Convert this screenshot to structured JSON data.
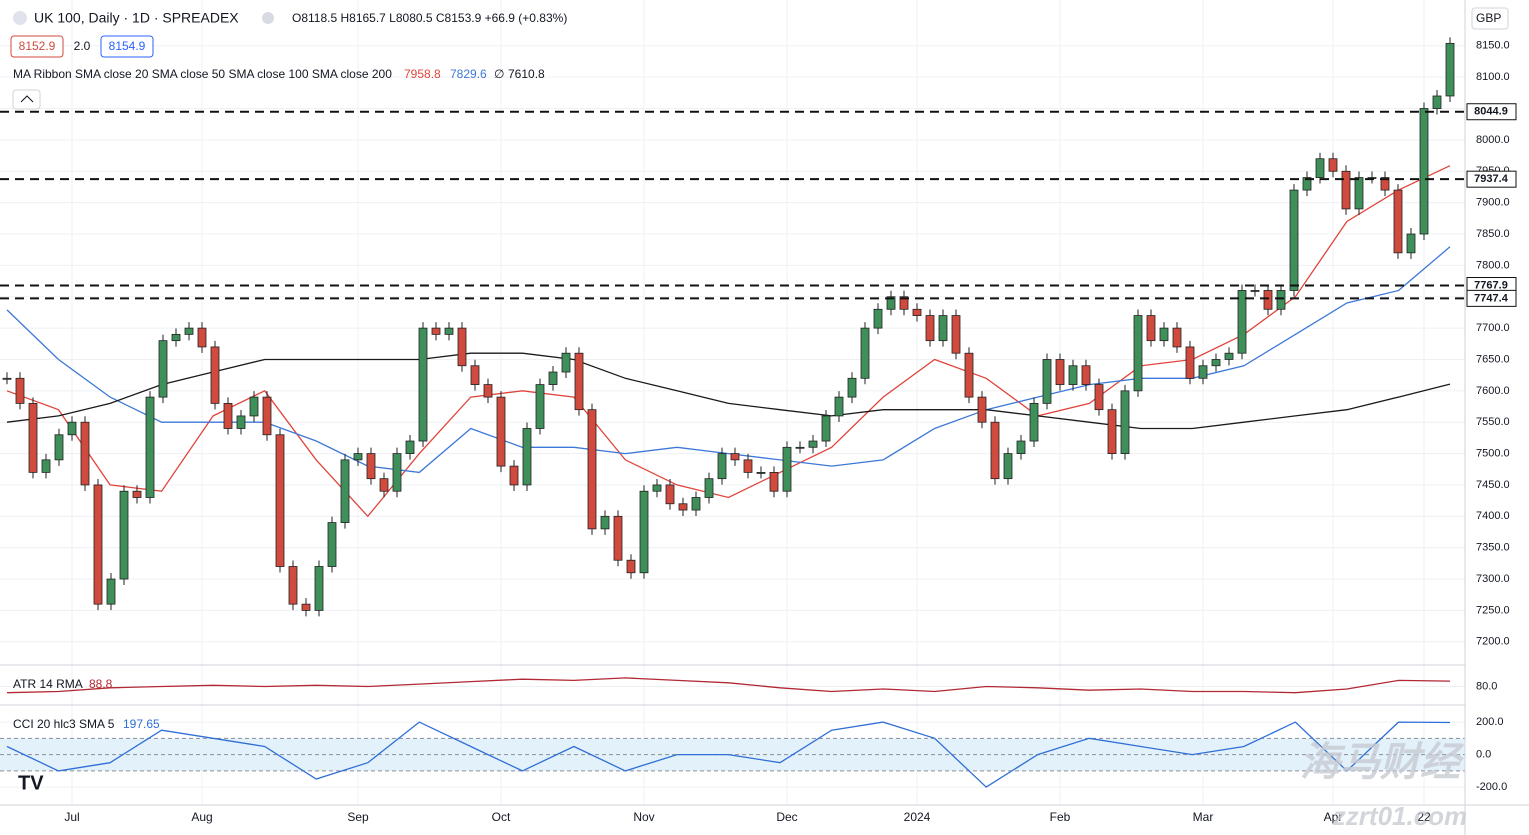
{
  "chart_data": {
    "type": "candlestick",
    "symbol": "UK 100, Daily · 1D · SPREADEX",
    "ohlc": "O8118.5 H8165.7 L8080.5 C8153.9 +66.9 (+0.83%)",
    "bid": "8152.9",
    "spread": "2.0",
    "ask": "8154.9",
    "currency": "GBP",
    "categories": [
      null,
      null,
      null,
      null,
      null,
      "Jul",
      null,
      null,
      null,
      null,
      null,
      null,
      null,
      null,
      null,
      "Aug",
      null,
      null,
      null,
      null,
      null,
      null,
      null,
      null,
      null,
      null,
      null,
      "Sep",
      null,
      null,
      null,
      null,
      null,
      null,
      null,
      null,
      null,
      null,
      "Oct",
      null,
      null,
      null,
      null,
      null,
      null,
      null,
      null,
      null,
      null,
      "Nov",
      null,
      null,
      null,
      null,
      null,
      null,
      null,
      null,
      null,
      null,
      "Dec",
      null,
      null,
      null,
      null,
      null,
      null,
      null,
      null,
      null,
      "2024",
      null,
      null,
      null,
      null,
      null,
      null,
      null,
      null,
      null,
      null,
      "Feb",
      null,
      null,
      null,
      null,
      null,
      null,
      null,
      null,
      null,
      null,
      "Mar",
      null,
      null,
      null,
      null,
      null,
      null,
      null,
      null,
      null,
      "Apr",
      null,
      null,
      null,
      null,
      null,
      null,
      "22",
      null,
      null
    ],
    "values": [
      7620,
      7580,
      7470,
      7490,
      7530,
      7550,
      7450,
      7260,
      7300,
      7440,
      7430,
      7590,
      7680,
      7690,
      7700,
      7670,
      7580,
      7540,
      7560,
      7590,
      7530,
      7320,
      7260,
      7250,
      7320,
      7390,
      7490,
      7500,
      7460,
      7440,
      7500,
      7520,
      7700,
      7690,
      7700,
      7640,
      7610,
      7590,
      7480,
      7450,
      7540,
      7610,
      7630,
      7660,
      7570,
      7380,
      7400,
      7330,
      7310,
      7440,
      7450,
      7420,
      7410,
      7430,
      7460,
      7500,
      7490,
      7470,
      7470,
      7440,
      7510,
      7510,
      7520,
      7560,
      7590,
      7620,
      7700,
      7730,
      7750,
      7730,
      7720,
      7680,
      7720,
      7660,
      7590,
      7550,
      7460,
      7500,
      7520,
      7580,
      7650,
      7610,
      7640,
      7610,
      7570,
      7500,
      7600,
      7720,
      7680,
      7700,
      7670,
      7620,
      7640,
      7650,
      7660,
      7760,
      7760,
      7730,
      7760,
      7920,
      7940,
      7970,
      7950,
      7890,
      7940,
      7940,
      7920,
      7820,
      7850,
      8050,
      8070,
      8153.9
    ],
    "up_color": "#3f8f5a",
    "down_color": "#d04a3e",
    "ylim": [
      7163,
      8223
    ],
    "yticks": [
      {
        "value": 7200,
        "label": "7200.0"
      },
      {
        "value": 7250,
        "label": "7250.0"
      },
      {
        "value": 7300,
        "label": "7300.0"
      },
      {
        "value": 7350,
        "label": "7350.0"
      },
      {
        "value": 7400,
        "label": "7400.0"
      },
      {
        "value": 7450,
        "label": "7450.0"
      },
      {
        "value": 7500,
        "label": "7500.0"
      },
      {
        "value": 7550,
        "label": "7550.0"
      },
      {
        "value": 7600,
        "label": "7600.0"
      },
      {
        "value": 7650,
        "label": "7650.0"
      },
      {
        "value": 7700,
        "label": "7700.0"
      },
      {
        "value": 7750,
        "label": "7750.0"
      },
      {
        "value": 7800,
        "label": "7800.0"
      },
      {
        "value": 7850,
        "label": "7850.0"
      },
      {
        "value": 7900,
        "label": "7900.0"
      },
      {
        "value": 7950,
        "label": "7950.0"
      },
      {
        "value": 8000,
        "label": "8000.0"
      },
      {
        "value": 8050,
        "label": "8050.0"
      },
      {
        "value": 8100,
        "label": "8100.0"
      },
      {
        "value": 8150,
        "label": "8150.0"
      }
    ],
    "grid": true,
    "levels": [
      8044.9,
      7937.4,
      7767.9,
      7747.4
    ],
    "ma_title": "MA Ribbon SMA close 20 SMA close 50 SMA close 100 SMA close 200",
    "ma_hidden": "∅",
    "ma": [
      {
        "color": "#e0443c",
        "values": [
          7600,
          7570,
          7450,
          7440,
          7560,
          7600,
          7490,
          7400,
          7500,
          7590,
          7600,
          7590,
          7490,
          7450,
          7430,
          7470,
          7510,
          7590,
          7650,
          7620,
          7560,
          7580,
          7640,
          7650,
          7690,
          7750,
          7870,
          7920,
          7958.8
        ]
      },
      {
        "color": "#3d78d8",
        "values": [
          7729,
          7650,
          7590,
          7550,
          7550,
          7550,
          7520,
          7480,
          7470,
          7540,
          7510,
          7510,
          7500,
          7510,
          7500,
          7490,
          7480,
          7490,
          7540,
          7570,
          7590,
          7610,
          7620,
          7620,
          7640,
          7690,
          7740,
          7760,
          7829.6
        ]
      },
      {
        "color": "#1a1a1a",
        "values": [
          7550,
          7560,
          7580,
          7610,
          7630,
          7650,
          7650,
          7650,
          7650,
          7660,
          7660,
          7650,
          7620,
          7600,
          7580,
          7570,
          7560,
          7570,
          7570,
          7570,
          7560,
          7550,
          7540,
          7540,
          7550,
          7560,
          7570,
          7590,
          7610.8
        ]
      }
    ],
    "atr": {
      "title": "ATR 14 RMA",
      "color": "#b22833",
      "ylim": [
        50,
        115
      ],
      "yticks": [
        {
          "value": 80,
          "label": "80.0"
        }
      ],
      "values": [
        70,
        72,
        78,
        80,
        82,
        80,
        82,
        80,
        84,
        88,
        92,
        90,
        94,
        90,
        86,
        78,
        72,
        76,
        72,
        80,
        78,
        74,
        76,
        72,
        72,
        70,
        76,
        90,
        88.8
      ]
    },
    "cci": {
      "title": "CCI 20 hlc3 SMA 5",
      "color": "#2f6fd6",
      "ylim": [
        -310,
        305
      ],
      "yticks": [
        {
          "value": 200,
          "label": "200.0"
        },
        {
          "value": 0,
          "label": "0.0"
        },
        {
          "value": -200,
          "label": "-200.0"
        }
      ],
      "band": [
        -100,
        100
      ],
      "values": [
        50,
        -100,
        -50,
        150,
        100,
        50,
        -150,
        -50,
        200,
        50,
        -100,
        50,
        -100,
        0,
        0,
        -50,
        150,
        200,
        100,
        -200,
        0,
        100,
        50,
        0,
        50,
        200,
        -100,
        200,
        197.65
      ]
    },
    "watermark": [
      "海马财经",
      "zzrt01.com"
    ]
  }
}
